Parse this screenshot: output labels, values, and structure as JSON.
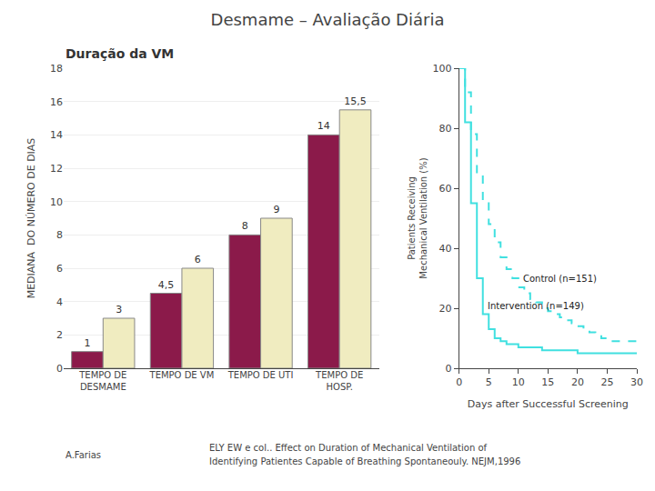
{
  "chart_data": [
    {
      "type": "bar",
      "title": "Desmame – Avaliação Diária",
      "subtitle": "Duração da VM",
      "ylabel": "MEDIANA  DO NÚMERO DE DIAS",
      "categories": [
        "TEMPO DE\nDESMAME",
        "TEMPO DE VM",
        "TEMPO DE UTI",
        "TEMPO DE\nHOSP."
      ],
      "series": [
        {
          "color": "#8B1A4A",
          "values": [
            1,
            4.5,
            8,
            14
          ],
          "value_labels": [
            "1",
            "4,5",
            "8",
            "14"
          ]
        },
        {
          "color": "#F0ECC0",
          "values": [
            3,
            6,
            9,
            15.5
          ],
          "value_labels": [
            "3",
            "6",
            "9",
            "15,5"
          ]
        }
      ],
      "ylim": [
        0,
        18
      ],
      "yticks": [
        0,
        2,
        4,
        6,
        8,
        10,
        12,
        14,
        16,
        18
      ],
      "grid": true,
      "data_labels": true,
      "annotations": [
        "A.Farias",
        "ELY EW e col.. Effect on Duration of Mechanical Ventilation of",
        "Identifying Patientes Capable of Breathing Spontaneouly. NEJM,1996"
      ]
    },
    {
      "type": "step",
      "xlabel": "Days after Successful Screening",
      "ylabel": "Patients Receiving\nMechanical Ventilation (%)",
      "x": [
        0,
        1,
        2,
        3,
        4,
        5,
        6,
        7,
        8,
        9,
        10,
        11,
        12,
        13,
        14,
        15,
        16,
        17,
        18,
        19,
        20,
        21,
        22,
        23,
        24,
        25,
        30
      ],
      "series": [
        {
          "name": "Control (n=151)",
          "color": "#40e0e0",
          "line_style": "dashed",
          "values": [
            100,
            92,
            78,
            65,
            56,
            48,
            42,
            37,
            33,
            30,
            27,
            25,
            23,
            22,
            20,
            19,
            18,
            17,
            16,
            15,
            14,
            13,
            12,
            11,
            10,
            9,
            7
          ]
        },
        {
          "name": "Intervention (n=149)",
          "color": "#40e0e0",
          "line_style": "solid",
          "values": [
            100,
            82,
            55,
            30,
            18,
            13,
            10,
            9,
            8,
            8,
            7,
            7,
            7,
            7,
            6,
            6,
            6,
            6,
            6,
            6,
            5,
            5,
            5,
            5,
            5,
            5,
            5
          ]
        }
      ],
      "xlim": [
        0,
        30
      ],
      "xticks": [
        0,
        5,
        10,
        15,
        20,
        25,
        30
      ],
      "ylim": [
        0,
        100
      ],
      "yticks": [
        0,
        20,
        40,
        60,
        80,
        100
      ],
      "grid": false
    }
  ]
}
